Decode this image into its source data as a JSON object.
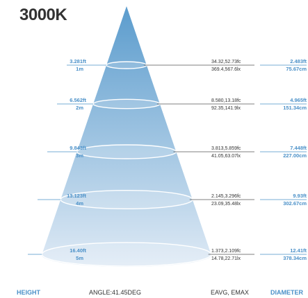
{
  "title": "3000K",
  "footer": {
    "height": "HEIGHT",
    "angle": "ANGLE:41.45DEG",
    "eavg": "EAVG, EMAX",
    "diameter": "DIAMETER"
  },
  "levels": [
    {
      "height_ft": "3.281ft",
      "height_m": "1m",
      "lux_fc": "34.32,52.73fc",
      "lux_lx": "369.4,567.6lx",
      "diameter_ft": "2.483ft",
      "diameter_cm": "75.67cm"
    },
    {
      "height_ft": "6.562ft",
      "height_m": "2m",
      "lux_fc": "8.580,13.18fc",
      "lux_lx": "92.35,141.9lx",
      "diameter_ft": "4.965ft",
      "diameter_cm": "151.34cm"
    },
    {
      "height_ft": "9.843ft",
      "height_m": "3m",
      "lux_fc": "3.813,5.859fc",
      "lux_lx": "41.05,63.07lx",
      "diameter_ft": "7.448ft",
      "diameter_cm": "227.00cm"
    },
    {
      "height_ft": "13.123ft",
      "height_m": "4m",
      "lux_fc": "2.145,3.296fc",
      "lux_lx": "23.09,35.48lx",
      "diameter_ft": "9.93ft",
      "diameter_cm": "302.67cm"
    },
    {
      "height_ft": "16.40ft",
      "height_m": "5m",
      "lux_fc": "1.373,2.109fc",
      "lux_lx": "14.78,22.71lx",
      "diameter_ft": "12.41ft",
      "diameter_cm": "378.34cm"
    }
  ],
  "colors": {
    "cone_top": "#5b9ccd",
    "cone_bottom": "#dfeaf5",
    "accent": "#4a90c8",
    "text_dark": "#333333"
  }
}
